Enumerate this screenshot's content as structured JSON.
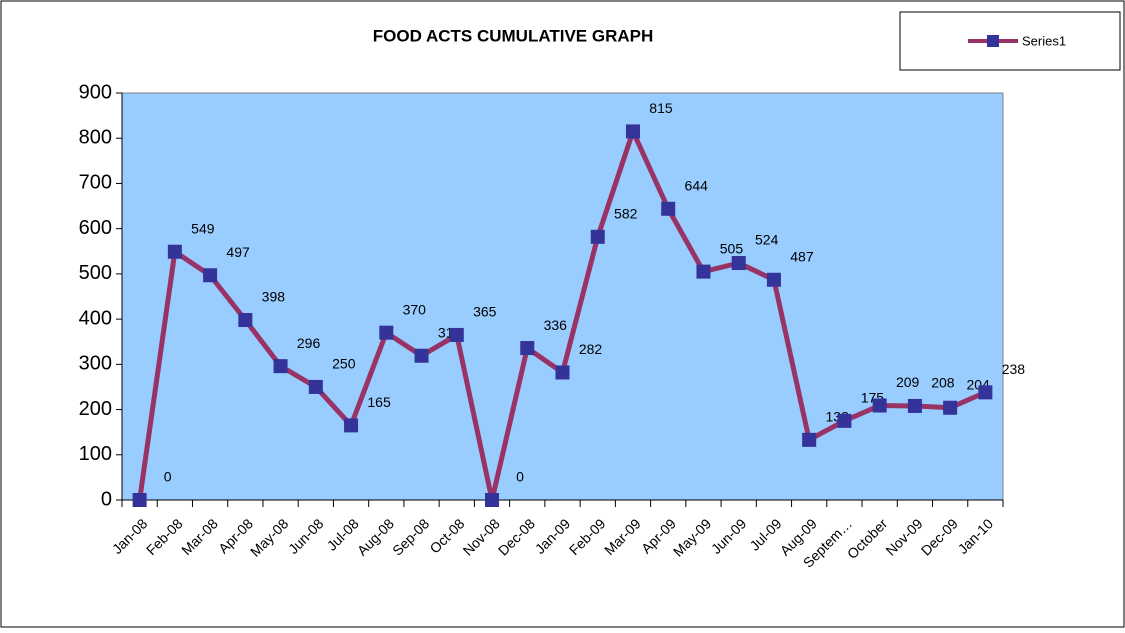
{
  "chart_data": {
    "type": "line",
    "title": "FOOD ACTS CUMULATIVE GRAPH",
    "categories": [
      "Jan-08",
      "Feb-08",
      "Mar-08",
      "Apr-08",
      "May-08",
      "Jun-08",
      "Jul-08",
      "Aug-08",
      "Sep-08",
      "Oct-08",
      "Nov-08",
      "Dec-08",
      "Jan-09",
      "Feb-09",
      "Mar-09",
      "Apr-09",
      "May-09",
      "Jun-09",
      "Jul-09",
      "Aug-09",
      "Septem…",
      "October",
      "Nov-09",
      "Dec-09",
      "Jan-10"
    ],
    "series": [
      {
        "name": "Series1",
        "color": "#993366",
        "marker_color": "#333399",
        "values": [
          0,
          549,
          497,
          398,
          296,
          250,
          165,
          370,
          319,
          365,
          0,
          336,
          282,
          582,
          815,
          644,
          505,
          524,
          487,
          133,
          175,
          209,
          208,
          204,
          238
        ]
      }
    ],
    "ylim": [
      0,
      900
    ],
    "yticks": [
      0,
      100,
      200,
      300,
      400,
      500,
      600,
      700,
      800,
      900
    ],
    "grid": false,
    "legend": "top-right",
    "plot_background": "#99ccff"
  }
}
